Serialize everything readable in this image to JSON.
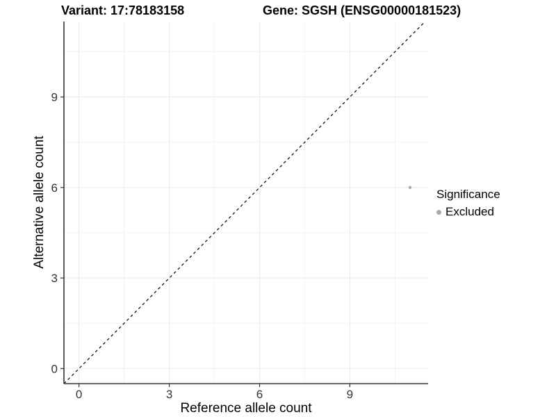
{
  "chart_data": {
    "type": "scatter",
    "title_left": "Variant: 17:78183158",
    "title_right": "Gene: SGSH (ENSG00000181523)",
    "xlabel": "Reference allele count",
    "ylabel": "Alternative allele count",
    "xlim": [
      -0.5,
      11.6
    ],
    "ylim": [
      -0.5,
      11.5
    ],
    "x_ticks": [
      0,
      3,
      6,
      9
    ],
    "y_ticks": [
      0,
      3,
      6,
      9
    ],
    "x_minor_ticks": [
      1.5,
      4.5,
      7.5,
      10.5
    ],
    "y_minor_ticks": [
      1.5,
      4.5,
      7.5,
      10.5
    ],
    "grid": true,
    "series": [
      {
        "name": "Excluded",
        "color": "#b0b0b0",
        "points": [
          {
            "x": 11,
            "y": 6
          }
        ]
      }
    ],
    "identity_line": {
      "style": "dashed",
      "color": "#000000",
      "from": [
        -0.5,
        -0.5
      ],
      "to": [
        11.5,
        11.5
      ]
    },
    "legend": {
      "title": "Significance",
      "position": "right",
      "items": [
        {
          "label": "Excluded",
          "color": "#aaaaaa"
        }
      ]
    },
    "colors": {
      "background": "#ffffff",
      "grid_major": "#e9e9e9",
      "grid_minor": "#f3f3f3",
      "axis_line": "#333333",
      "tick_label": "#333333"
    }
  }
}
